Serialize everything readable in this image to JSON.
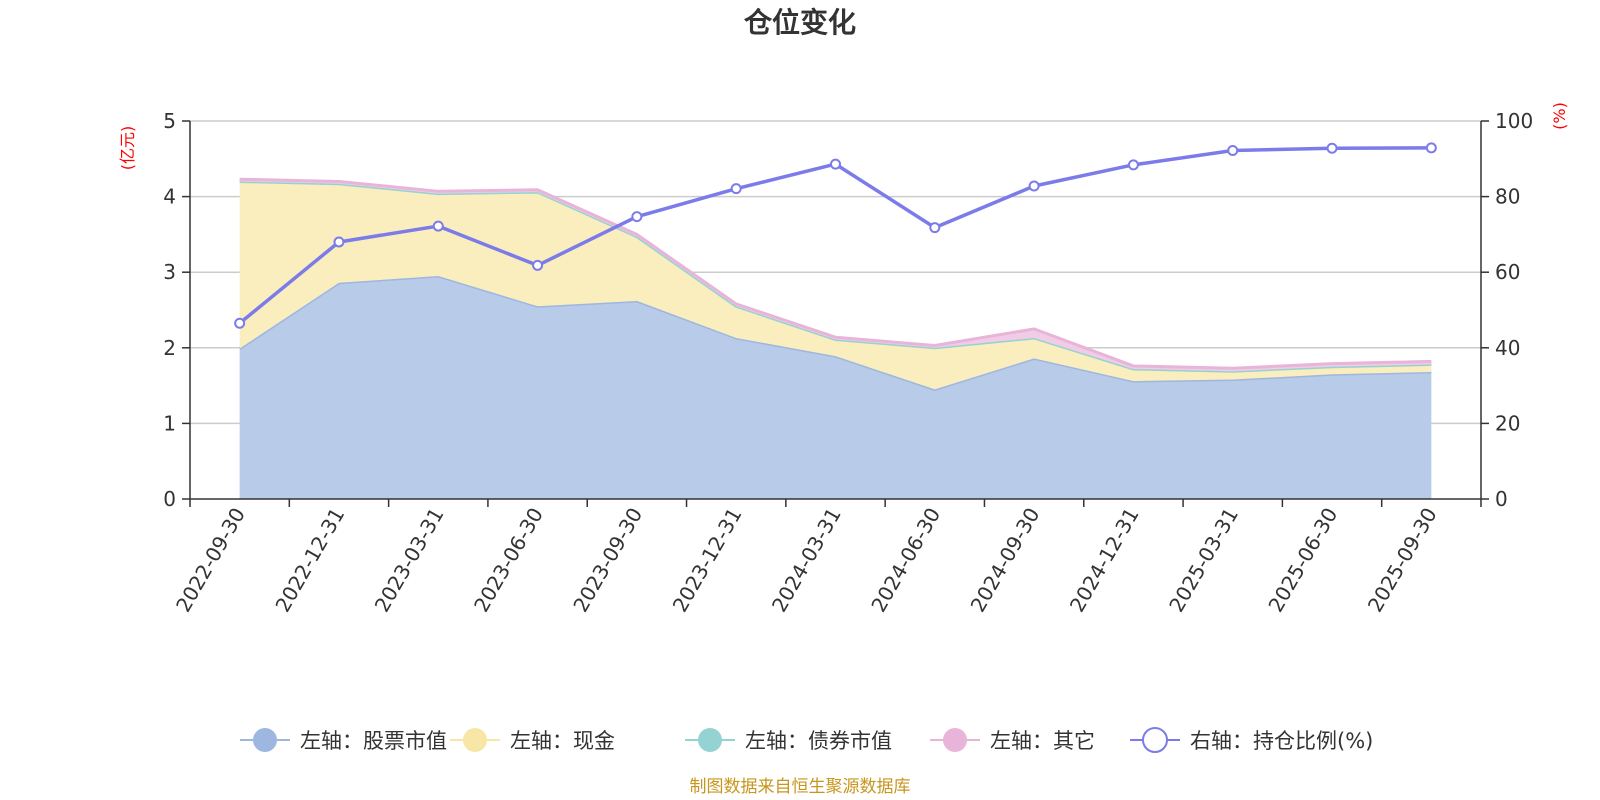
{
  "chart_data": {
    "type": "area",
    "title": "仓位变化",
    "categories": [
      "2022-09-30",
      "2022-12-31",
      "2023-03-31",
      "2023-06-30",
      "2023-09-30",
      "2023-12-31",
      "2024-03-31",
      "2024-06-30",
      "2024-09-30",
      "2024-12-31",
      "2025-03-31",
      "2025-06-30",
      "2025-09-30"
    ],
    "left_axis": {
      "unit": "(亿元)",
      "ylim": [
        0,
        5
      ],
      "ticks": [
        "0",
        "1",
        "2",
        "3",
        "4",
        "5"
      ]
    },
    "right_axis": {
      "unit": "(%)",
      "ylim": [
        0,
        100
      ],
      "ticks": [
        "0",
        "20",
        "40",
        "60",
        "80",
        "100"
      ]
    },
    "series": [
      {
        "name": "左轴：股票市值",
        "axis": "left",
        "type": "stacked-area",
        "color": "#9db7e0",
        "fill": "#b8cbe9",
        "values": [
          1.99,
          2.86,
          2.95,
          2.55,
          2.62,
          2.13,
          1.89,
          1.45,
          1.86,
          1.56,
          1.58,
          1.65,
          1.68
        ]
      },
      {
        "name": "左轴：现金",
        "axis": "left",
        "type": "stacked-area",
        "color": "#f7e6a6",
        "fill": "#faedbe",
        "values": [
          2.21,
          1.31,
          1.09,
          1.51,
          0.85,
          0.42,
          0.22,
          0.55,
          0.27,
          0.16,
          0.11,
          0.1,
          0.1
        ]
      },
      {
        "name": "左轴：债券市值",
        "axis": "left",
        "type": "stacked-area",
        "color": "#95d3d3",
        "fill": "#b5e2e2",
        "values": [
          0,
          0,
          0,
          0,
          0,
          0,
          0,
          0,
          0,
          0,
          0,
          0,
          0
        ]
      },
      {
        "name": "左轴：其它",
        "axis": "left",
        "type": "stacked-area",
        "color": "#e8b4d9",
        "fill": "#f0cce6",
        "values": [
          0.03,
          0.03,
          0.03,
          0.03,
          0.03,
          0.03,
          0.03,
          0.03,
          0.12,
          0.04,
          0.04,
          0.04,
          0.04
        ]
      },
      {
        "name": "右轴：持仓比例(%)",
        "axis": "right",
        "type": "line",
        "color": "#7b7bea",
        "values": [
          46.5,
          68.0,
          72.2,
          61.8,
          74.7,
          82.1,
          88.6,
          71.8,
          82.8,
          88.4,
          92.2,
          92.8,
          92.9
        ]
      }
    ]
  },
  "footer": {
    "text": "制图数据来自恒生聚源数据库"
  }
}
